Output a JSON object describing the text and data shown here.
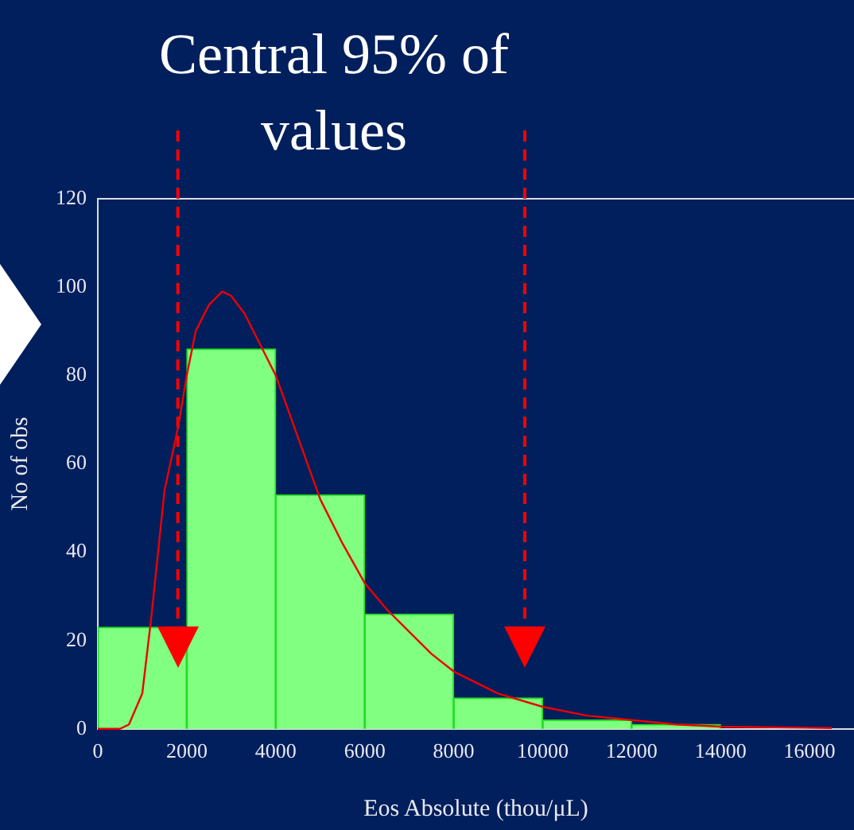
{
  "chart_data": {
    "type": "histogram",
    "title": "Central 95% of values",
    "xlabel": "Eos Absolute (thou/μL)",
    "ylabel": "No of obs",
    "bins": [
      0,
      2000,
      4000,
      6000,
      8000,
      10000,
      12000,
      14000
    ],
    "values": [
      23,
      86,
      53,
      26,
      7,
      2,
      1
    ],
    "color": "#80ff80",
    "series": [
      {
        "type": "line",
        "color": "#ee0000",
        "x": [
          0,
          500,
          700,
          1000,
          1200,
          1500,
          1800,
          2000,
          2200,
          2500,
          2800,
          3000,
          3300,
          3600,
          4000,
          4500,
          5000,
          5500,
          6000,
          6500,
          7000,
          7500,
          8000,
          9000,
          10000,
          11000,
          12000,
          13000,
          14000,
          16500
        ],
        "values": [
          0,
          0,
          1,
          8,
          25,
          54,
          68,
          80,
          90,
          96,
          99,
          98,
          94,
          88,
          80,
          66,
          52,
          42,
          33,
          27,
          22,
          17,
          13,
          8,
          5,
          3,
          2,
          1,
          0.5,
          0.2
        ]
      }
    ],
    "ref_lines": [
      {
        "axis": "x",
        "value": 1800,
        "color": "#ff0000",
        "line_style": "dashed"
      },
      {
        "axis": "x",
        "value": 9600,
        "color": "#ff0000",
        "line_style": "dashed"
      }
    ],
    "xlim": [
      0,
      17000
    ],
    "xticks": [
      0,
      2000,
      4000,
      6000,
      8000,
      10000,
      12000,
      14000,
      16000
    ],
    "ylim": [
      0,
      120
    ],
    "yticks": [
      0,
      20,
      40,
      60,
      80,
      100,
      120
    ],
    "grid": false,
    "legend": false,
    "marker": "none"
  }
}
